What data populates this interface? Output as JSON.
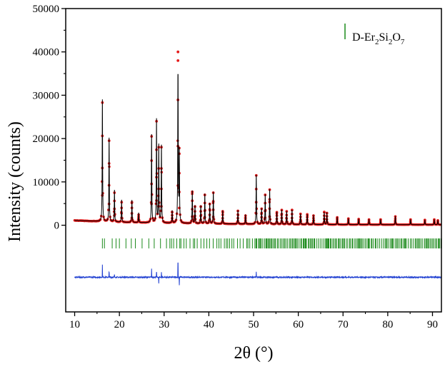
{
  "chart_data": {
    "type": "scatter",
    "title": "",
    "xlabel": "2θ (°)",
    "ylabel": "Intensity (counts)",
    "xlim": [
      8,
      92
    ],
    "ylim": [
      -20000,
      50000
    ],
    "x_ticks": [
      10,
      20,
      30,
      40,
      50,
      60,
      70,
      80,
      90
    ],
    "y_ticks": [
      0,
      10000,
      20000,
      30000,
      40000,
      50000
    ],
    "grid": false,
    "legend": {
      "placement": "top-right",
      "entries": [
        {
          "prefix": "D-Er",
          "sub1": "2",
          "mid1": "Si",
          "sub2": "2",
          "mid2": "O",
          "sub3": "7",
          "color": "#1b8a1b",
          "marker": "vertical-bar"
        }
      ]
    },
    "background_curve": {
      "x": [
        10,
        20,
        30,
        40,
        50,
        60,
        70,
        80,
        92
      ],
      "y": [
        1100,
        700,
        500,
        350,
        250,
        180,
        150,
        130,
        120
      ]
    },
    "peaks": {
      "x": [
        16.2,
        17.7,
        18.9,
        20.5,
        22.8,
        24.3,
        27.2,
        28.3,
        28.8,
        29.4,
        31.8,
        33.1,
        33.4,
        36.3,
        36.9,
        38.2,
        39.1,
        40.2,
        41.0,
        43.1,
        46.5,
        48.2,
        50.6,
        51.8,
        52.6,
        53.6,
        55.2,
        56.3,
        57.4,
        58.6,
        60.5,
        62.0,
        63.4,
        65.8,
        66.4,
        68.7,
        71.2,
        73.5,
        75.8,
        78.4,
        81.7,
        85.1,
        88.3,
        90.4,
        91.2
      ],
      "y": [
        28300,
        19500,
        7500,
        5300,
        5300,
        2400,
        20500,
        24000,
        18000,
        18000,
        3000,
        40000,
        16500,
        7700,
        4300,
        4300,
        7000,
        4900,
        7500,
        3200,
        3300,
        2200,
        11500,
        3800,
        7000,
        8200,
        3000,
        3500,
        3200,
        3500,
        2600,
        2500,
        2200,
        3000,
        2800,
        1800,
        1500,
        1400,
        1300,
        1300,
        2000,
        1300,
        1200,
        1300,
        1100
      ]
    },
    "series": [
      {
        "name": "",
        "kind": "observed",
        "color": "#e41a1a",
        "marker": "dot"
      },
      {
        "name": "",
        "kind": "calculated",
        "color": "#000000",
        "marker": "line"
      },
      {
        "name": "",
        "kind": "difference",
        "color": "#1f3fd1",
        "marker": "line",
        "offset": -12000
      },
      {
        "name": "",
        "kind": "bragg-positions",
        "color": "#1b8a1b",
        "marker": "tick",
        "level": -4200,
        "range": [
          16.2,
          92
        ]
      }
    ]
  }
}
